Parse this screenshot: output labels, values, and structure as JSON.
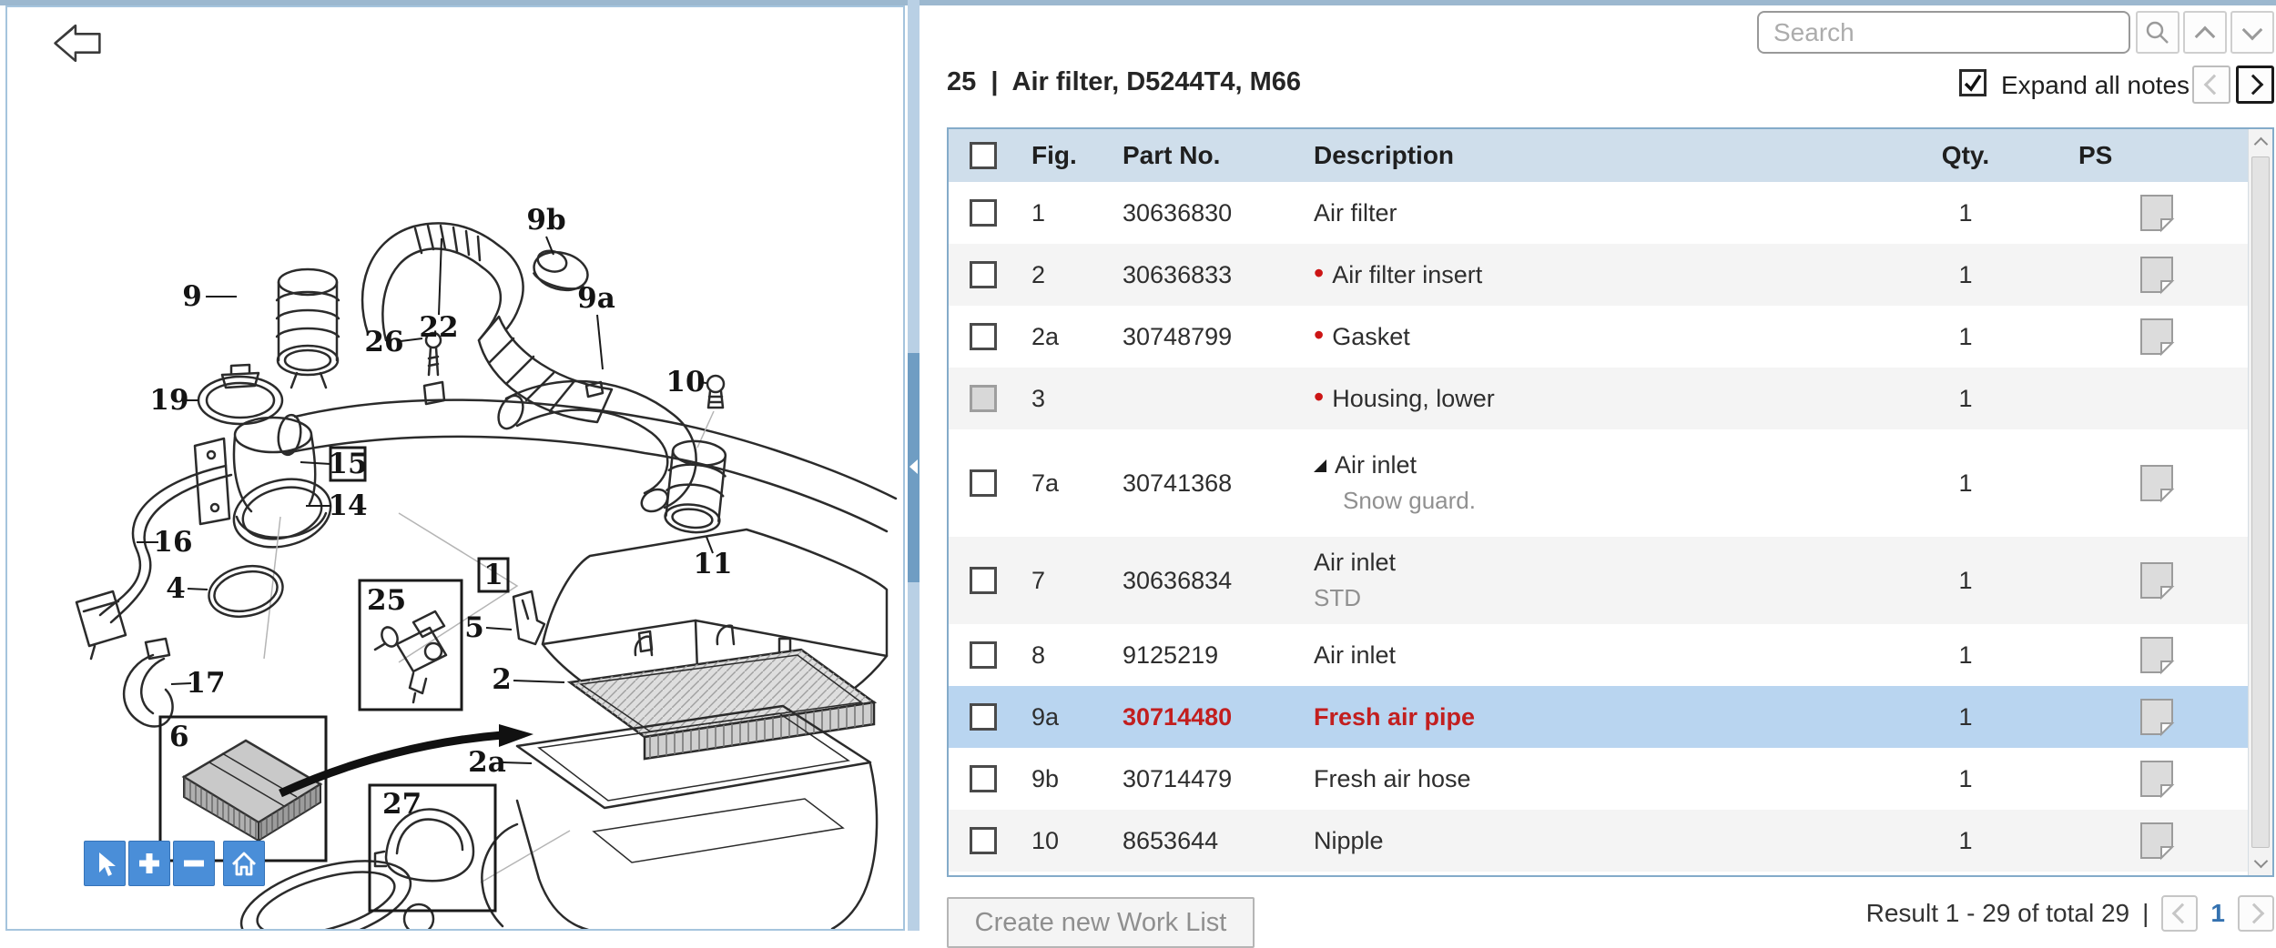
{
  "left_panel": {
    "back_icon": "back-arrow-icon",
    "zoom_toolbar_icons": [
      "pointer-icon",
      "zoom-in-icon",
      "zoom-out-icon",
      "home-icon"
    ],
    "diagram_labels": [
      {
        "text": "9b"
      },
      {
        "text": "9"
      },
      {
        "text": "22"
      },
      {
        "text": "26"
      },
      {
        "text": "9a"
      },
      {
        "text": "10"
      },
      {
        "text": "19"
      },
      {
        "text": "15"
      },
      {
        "text": "14"
      },
      {
        "text": "16"
      },
      {
        "text": "4"
      },
      {
        "text": "17"
      },
      {
        "text": "11"
      },
      {
        "text": "25"
      },
      {
        "text": "1"
      },
      {
        "text": "5"
      },
      {
        "text": "2"
      },
      {
        "text": "2a"
      },
      {
        "text": "6"
      },
      {
        "text": "27"
      }
    ]
  },
  "search": {
    "placeholder": "Search"
  },
  "header": {
    "title": "25  |  Air filter, D5244T4, M66",
    "expand_all_notes": "Expand all notes",
    "expand_checked": true
  },
  "table": {
    "columns": {
      "fig": "Fig.",
      "part": "Part No.",
      "desc": "Description",
      "qty": "Qty.",
      "ps": "PS"
    },
    "rows": [
      {
        "fig": "1",
        "part": "30636830",
        "desc": "Air filter",
        "qty": "1",
        "ps": true,
        "state": "normal"
      },
      {
        "fig": "2",
        "part": "30636833",
        "desc": "Air filter insert",
        "qty": "1",
        "bullet": true,
        "ps": true,
        "state": "normal"
      },
      {
        "fig": "2a",
        "part": "30748799",
        "desc": "Gasket",
        "qty": "1",
        "bullet": true,
        "ps": true,
        "state": "normal"
      },
      {
        "fig": "3",
        "part": "",
        "desc": "Housing, lower",
        "qty": "1",
        "bullet": true,
        "ps": false,
        "state": "disabled"
      },
      {
        "fig": "7a",
        "part": "30741368",
        "desc": "Air inlet",
        "note": "Snow guard.",
        "qty": "1",
        "tri": true,
        "ps": true,
        "state": "normal"
      },
      {
        "fig": "7",
        "part": "30636834",
        "desc": "Air inlet",
        "note": "STD",
        "qty": "1",
        "ps": true,
        "state": "normal"
      },
      {
        "fig": "8",
        "part": "9125219",
        "desc": "Air inlet",
        "qty": "1",
        "ps": true,
        "state": "normal"
      },
      {
        "fig": "9a",
        "part": "30714480",
        "desc": "Fresh air pipe",
        "qty": "1",
        "ps": true,
        "state": "selected"
      },
      {
        "fig": "9b",
        "part": "30714479",
        "desc": "Fresh air hose",
        "qty": "1",
        "ps": true,
        "state": "normal"
      },
      {
        "fig": "10",
        "part": "8653644",
        "desc": "Nipple",
        "qty": "1",
        "ps": true,
        "state": "normal"
      }
    ]
  },
  "footer": {
    "create_worklist": "Create new Work List",
    "result_text": "Result 1 - 29 of total 29",
    "separator": "|",
    "page": "1"
  },
  "colors": {
    "accent_blue": "#4a8ed8",
    "header_bg": "#cfdeeb",
    "selected_row": "#b9d5f0",
    "alert_red": "#c21f1f",
    "panel_border": "#a5c4dd"
  }
}
